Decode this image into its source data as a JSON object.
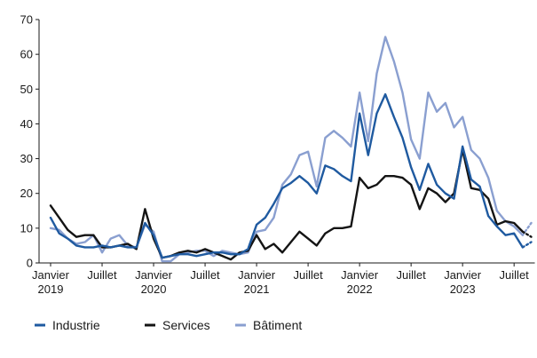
{
  "chart_data": {
    "type": "line",
    "title": "",
    "xlabel": "",
    "ylabel": "",
    "ylim": [
      0,
      70
    ],
    "y_ticks": [
      0,
      10,
      20,
      30,
      40,
      50,
      60,
      70
    ],
    "grid": false,
    "legend_position": "bottom",
    "x_ticks": [
      {
        "month": 0,
        "line1": "Janvier",
        "line2": "2019"
      },
      {
        "month": 6,
        "line1": "Juillet",
        "line2": ""
      },
      {
        "month": 12,
        "line1": "Janvier",
        "line2": "2020"
      },
      {
        "month": 18,
        "line1": "Juillet",
        "line2": ""
      },
      {
        "month": 24,
        "line1": "Janvier",
        "line2": "2021"
      },
      {
        "month": 30,
        "line1": "Juillet",
        "line2": ""
      },
      {
        "month": 36,
        "line1": "Janvier",
        "line2": "2022"
      },
      {
        "month": 42,
        "line1": "Juillet",
        "line2": ""
      },
      {
        "month": 48,
        "line1": "Janvier",
        "line2": "2023"
      },
      {
        "month": 54,
        "line1": "Juillet",
        "line2": ""
      }
    ],
    "series": [
      {
        "name": "Industrie",
        "color": "#1f5aa0",
        "values": [
          13,
          8.5,
          7,
          5,
          4.5,
          4.5,
          5,
          4.5,
          5,
          4.5,
          4.5,
          11.5,
          8,
          1.5,
          2,
          2.5,
          2.5,
          2,
          2.5,
          3,
          3,
          2.5,
          2.5,
          4,
          11,
          13,
          17,
          21.5,
          23,
          25,
          23,
          20,
          28,
          27,
          25,
          23.5,
          43,
          31,
          43,
          48.5,
          42,
          36,
          27.5,
          21,
          28.5,
          22.5,
          20,
          18.5,
          33.5,
          24,
          22,
          13.5,
          10.5,
          8,
          8.5,
          4.5
        ],
        "projection": [
          4.5,
          6
        ]
      },
      {
        "name": "Services",
        "color": "#141414",
        "values": [
          16.5,
          13,
          9.5,
          7.5,
          8,
          8,
          4.5,
          4.5,
          5,
          5.5,
          4,
          15.5,
          7,
          1.5,
          2,
          3,
          3.5,
          3,
          4,
          3,
          2,
          1,
          3,
          3.5,
          8,
          4,
          5.5,
          3,
          6,
          9,
          7,
          5,
          8.5,
          10,
          10,
          10.5,
          24.5,
          21.5,
          22.5,
          25,
          25,
          24.5,
          22.5,
          15.5,
          21.5,
          20,
          17.5,
          20,
          32.5,
          21.5,
          21,
          18.5,
          11,
          12,
          11.5,
          9
        ],
        "projection": [
          9,
          7.5
        ]
      },
      {
        "name": "Bâtiment",
        "color": "#8a9fd0",
        "values": [
          10,
          9.5,
          7,
          5.5,
          6,
          8,
          3,
          7,
          8,
          5,
          4.5,
          11,
          9,
          0.5,
          0.5,
          2.5,
          3,
          3.5,
          3.5,
          2,
          3.5,
          3,
          2.5,
          3,
          9,
          9.5,
          13,
          22.5,
          25.5,
          31,
          32,
          22,
          36,
          38,
          36,
          33.5,
          49,
          35,
          54.5,
          65,
          58,
          49,
          35.5,
          30,
          49,
          43.5,
          46,
          39,
          42,
          32.5,
          30,
          24.5,
          15,
          12,
          10.5,
          8
        ],
        "projection": [
          8,
          11.5
        ]
      }
    ]
  }
}
